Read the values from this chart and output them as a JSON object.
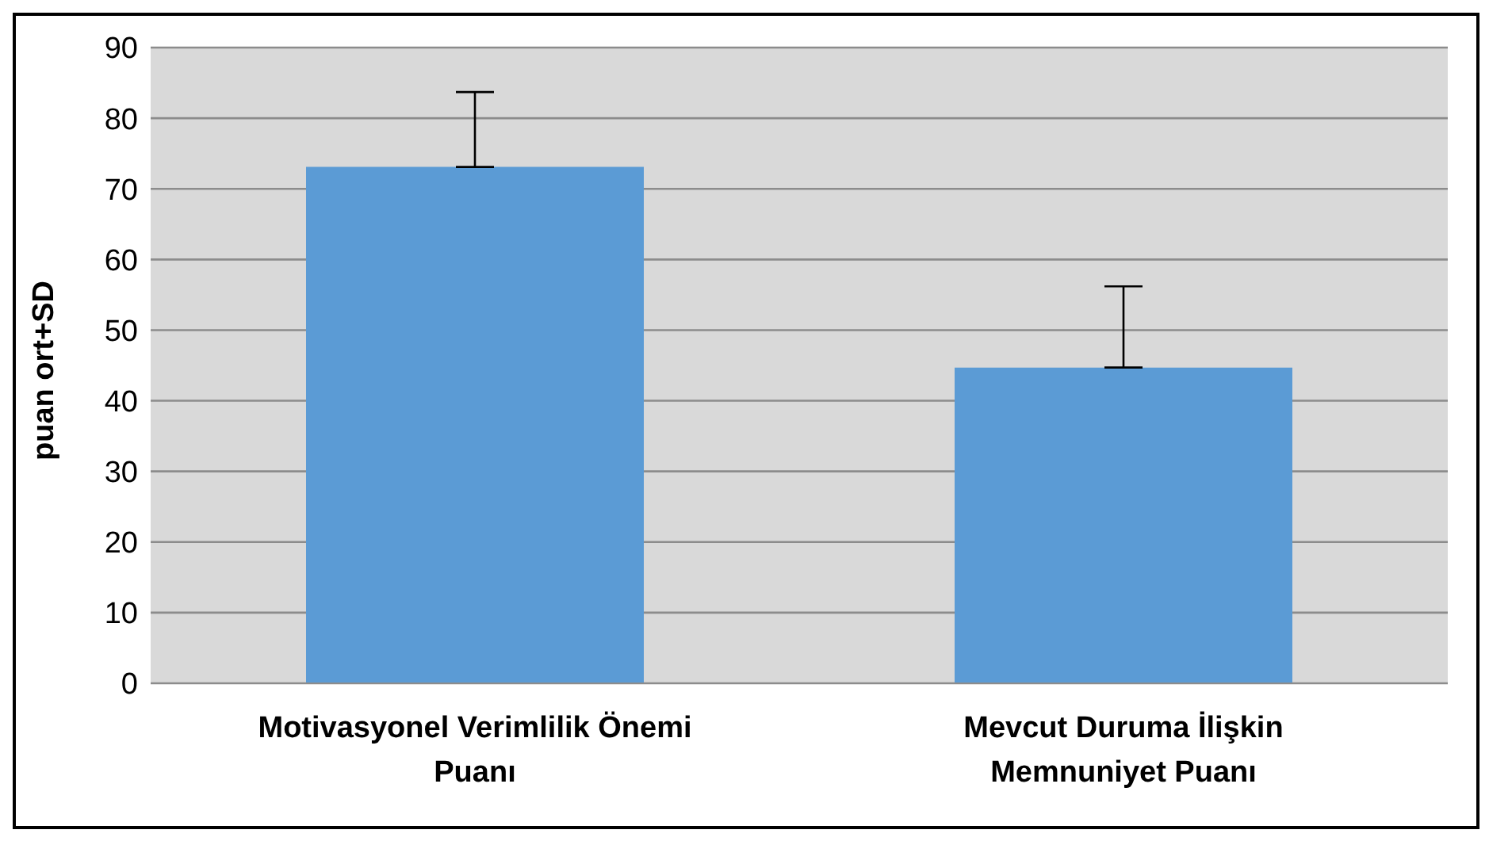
{
  "chart_data": {
    "type": "bar",
    "ylabel": "puan ort+SD",
    "categories": [
      "Motivasyonel Verimlilik Önemi Puanı",
      "Mevcut Duruma İlişkin Memnuniyet Puanı"
    ],
    "series": [
      {
        "color": "#5b9bd5",
        "values": [
          73.1,
          44.7
        ],
        "errors": [
          [
            73.1,
            83.7
          ],
          [
            44.7,
            56.2
          ]
        ]
      }
    ],
    "ylim": [
      0,
      90
    ],
    "yticks": [
      0,
      10,
      20,
      30,
      40,
      50,
      60,
      70,
      80,
      90
    ],
    "grid": "y",
    "legend": false
  }
}
